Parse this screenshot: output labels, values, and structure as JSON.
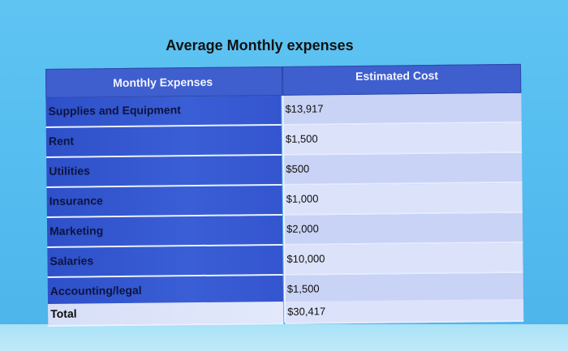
{
  "title": "Average Monthly expenses",
  "table": {
    "headers": [
      "Monthly Expenses",
      "Estimated Cost"
    ],
    "rows": [
      {
        "item": "Supplies and Equipment",
        "cost": "$13,917"
      },
      {
        "item": "Rent",
        "cost": "$1,500"
      },
      {
        "item": "Utilities",
        "cost": "$500"
      },
      {
        "item": "Insurance",
        "cost": "$1,000"
      },
      {
        "item": "Marketing",
        "cost": "$2,000"
      },
      {
        "item": "Salaries",
        "cost": "$10,000"
      },
      {
        "item": "Accounting/legal",
        "cost": "$1,500"
      },
      {
        "item": "Total",
        "cost": "$30,417"
      }
    ]
  },
  "colors": {
    "background": "#55bdf0",
    "header": "#3f5fcf",
    "label_cell": "#3455cf",
    "value_cell": "#c9d3f5"
  }
}
